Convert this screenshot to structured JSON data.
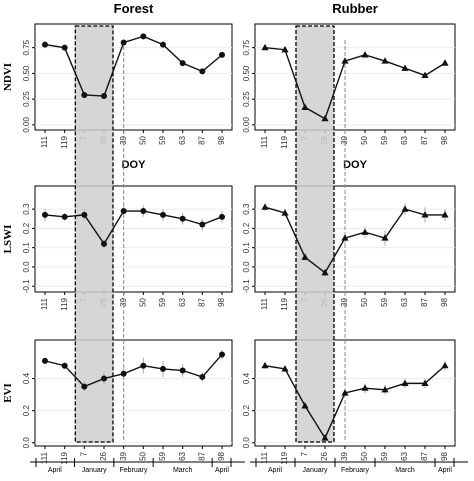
{
  "chart_data": [
    {
      "type": "line",
      "title": "Forest",
      "ylabel": "NDVI",
      "xlabel": "DOY",
      "marker": "circle",
      "color": "#111",
      "grid": true,
      "categories": [
        "111",
        "119",
        "7",
        "26",
        "39",
        "50",
        "59",
        "63",
        "87",
        "98"
      ],
      "values": [
        0.78,
        0.75,
        0.29,
        0.28,
        0.8,
        0.86,
        0.78,
        0.6,
        0.52,
        0.68
      ],
      "ylim": [
        -0.05,
        0.98
      ],
      "yticks": [
        {
          "value": 0,
          "label": "0.00"
        },
        {
          "value": 0.25,
          "label": "0.25"
        },
        {
          "value": 0.5,
          "label": "0.50"
        },
        {
          "value": 0.75,
          "label": "0.75"
        }
      ]
    },
    {
      "type": "line",
      "title": "Rubber",
      "xlabel": "DOY",
      "marker": "triangle",
      "color": "#111",
      "grid": true,
      "categories": [
        "111",
        "119",
        "7",
        "26",
        "39",
        "50",
        "59",
        "63",
        "87",
        "98"
      ],
      "values": [
        0.75,
        0.73,
        0.17,
        0.06,
        0.62,
        0.68,
        0.62,
        0.55,
        0.48,
        0.6
      ],
      "ylim": [
        -0.05,
        0.98
      ],
      "yticks": [
        {
          "value": 0,
          "label": "0.00"
        },
        {
          "value": 0.25,
          "label": "0.25"
        },
        {
          "value": 0.5,
          "label": "0.50"
        },
        {
          "value": 0.75,
          "label": "0.75"
        }
      ]
    },
    {
      "type": "line",
      "ylabel": "LSWI",
      "marker": "circle",
      "color": "#111",
      "grid": true,
      "categories": [
        "111",
        "119",
        "7",
        "26",
        "39",
        "50",
        "59",
        "63",
        "87",
        "98"
      ],
      "values": [
        0.27,
        0.26,
        0.27,
        0.12,
        0.29,
        0.29,
        0.27,
        0.25,
        0.22,
        0.26
      ],
      "errors": [
        0.03,
        0.02,
        0.03,
        0.02,
        0.03,
        0.03,
        0.03,
        0.03,
        0.03,
        0.03
      ],
      "ylim": [
        -0.13,
        0.42
      ],
      "yticks": [
        -0.1,
        {
          "value": 0,
          "label": "0.0"
        },
        0.1,
        0.2,
        0.3
      ]
    },
    {
      "type": "line",
      "marker": "triangle",
      "color": "#111",
      "grid": true,
      "categories": [
        "111",
        "119",
        "7",
        "26",
        "39",
        "50",
        "59",
        "63",
        "87",
        "98"
      ],
      "values": [
        0.31,
        0.28,
        0.05,
        -0.03,
        0.15,
        0.18,
        0.15,
        0.3,
        0.27,
        0.27
      ],
      "errors": [
        0.02,
        0.02,
        0.02,
        0.02,
        0.03,
        0.03,
        0.04,
        0.03,
        0.04,
        0.03
      ],
      "ylim": [
        -0.13,
        0.42
      ],
      "yticks": [
        -0.1,
        {
          "value": 0,
          "label": "0.0"
        },
        0.1,
        0.2,
        0.3
      ]
    },
    {
      "type": "line",
      "ylabel": "EVI",
      "marker": "circle",
      "color": "#111",
      "grid": true,
      "categories": [
        "111",
        "119",
        "7",
        "26",
        "39",
        "50",
        "59",
        "63",
        "87",
        "98"
      ],
      "values": [
        0.51,
        0.48,
        0.35,
        0.4,
        0.43,
        0.48,
        0.46,
        0.45,
        0.41,
        0.55
      ],
      "errors": [
        0.02,
        0.02,
        0.03,
        0.04,
        0.04,
        0.05,
        0.05,
        0.04,
        0.03,
        0.03
      ],
      "ylim": [
        -0.02,
        0.64
      ],
      "yticks": [
        {
          "value": 0,
          "label": "0.0"
        },
        0.2,
        0.4
      ],
      "months": [
        "April",
        "January",
        "February",
        "March",
        "April"
      ]
    },
    {
      "type": "line",
      "marker": "triangle",
      "color": "#111",
      "grid": true,
      "categories": [
        "111",
        "119",
        "7",
        "26",
        "39",
        "50",
        "59",
        "63",
        "87",
        "98"
      ],
      "values": [
        0.48,
        0.46,
        0.23,
        0.03,
        0.31,
        0.34,
        0.33,
        0.37,
        0.37,
        0.48
      ],
      "errors": [
        0.02,
        0.02,
        0.02,
        0.02,
        0.03,
        0.03,
        0.03,
        0.03,
        0.03,
        0.03
      ],
      "ylim": [
        -0.02,
        0.64
      ],
      "yticks": [
        {
          "value": 0,
          "label": "0.0"
        },
        0.2,
        0.4
      ],
      "months": [
        "April",
        "January",
        "February",
        "March",
        "April"
      ]
    }
  ]
}
